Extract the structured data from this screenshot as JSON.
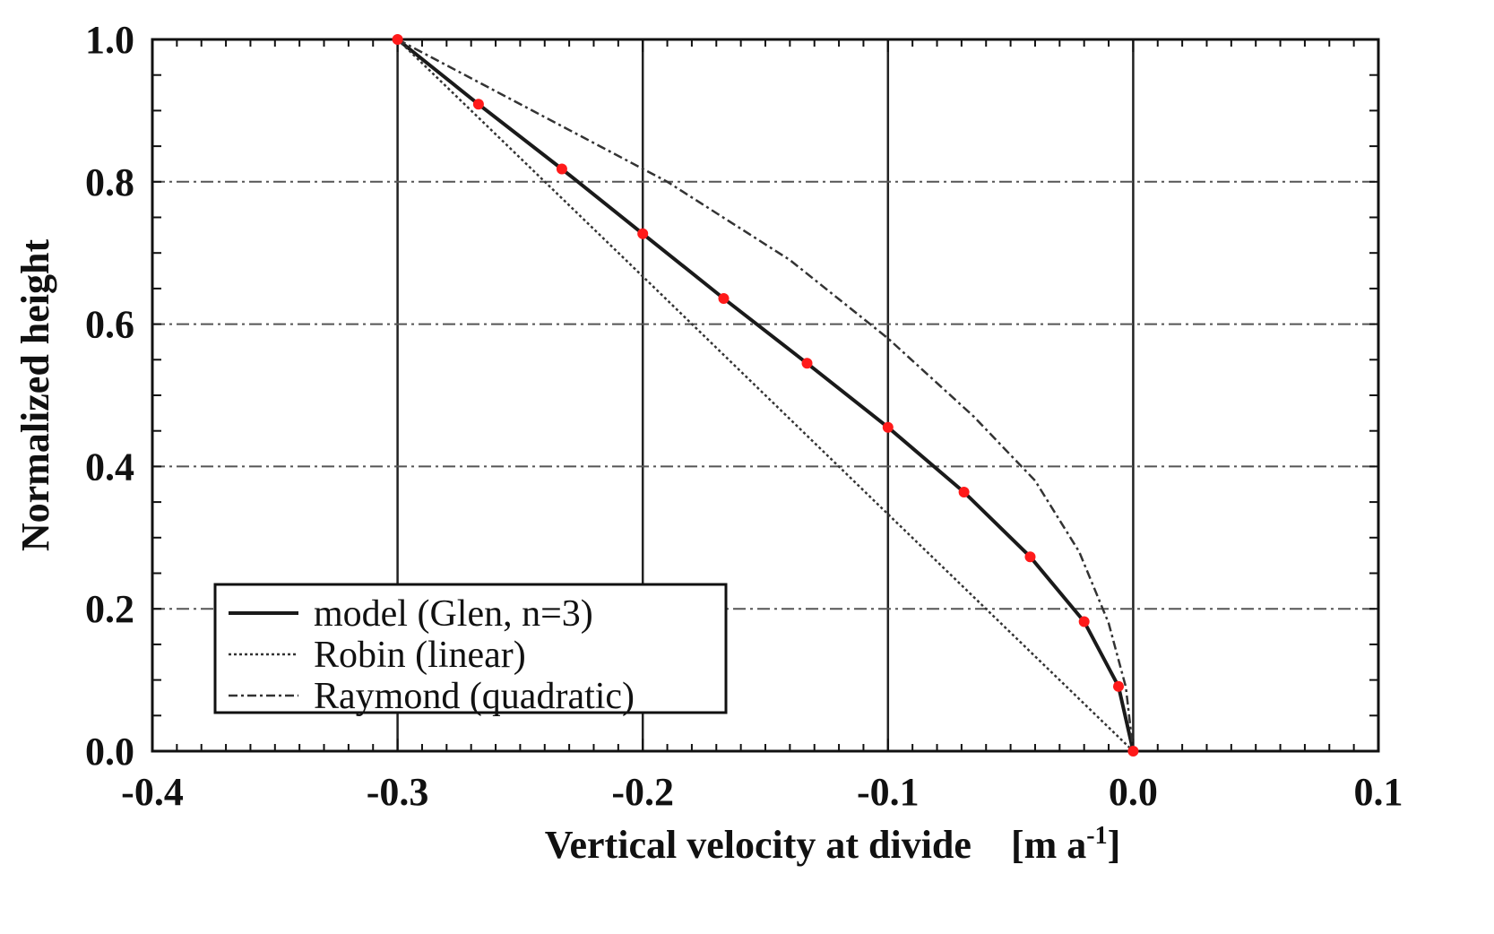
{
  "chart_data": {
    "type": "line",
    "title": "",
    "xlabel": "Vertical velocity at divide",
    "xunit": "[m a",
    "xunit_sup": "-1",
    "xunit_close": "]",
    "ylabel": "Normalized height",
    "xlim": [
      -0.4,
      0.1
    ],
    "ylim": [
      0.0,
      1.0
    ],
    "xticks": [
      "-0.4",
      "-0.3",
      "-0.2",
      "-0.1",
      "0.0",
      "0.1"
    ],
    "yticks": [
      "0.0",
      "0.2",
      "0.4",
      "0.6",
      "0.8",
      "1.0"
    ],
    "grid": true,
    "legend_position": "bottom-left",
    "series": [
      {
        "name": "model (Glen, n=3)",
        "style": "solid",
        "color": "#1a1a1a",
        "points": [
          [
            -0.3,
            1.0
          ],
          [
            -0.267,
            0.909
          ],
          [
            -0.233,
            0.818
          ],
          [
            -0.2,
            0.727
          ],
          [
            -0.167,
            0.636
          ],
          [
            -0.133,
            0.545
          ],
          [
            -0.1,
            0.455
          ],
          [
            -0.069,
            0.364
          ],
          [
            -0.042,
            0.273
          ],
          [
            -0.02,
            0.182
          ],
          [
            -0.006,
            0.091
          ],
          [
            0.0,
            0.0
          ]
        ]
      },
      {
        "name": "Robin (linear)",
        "style": "dotted",
        "color": "#333333",
        "points": [
          [
            -0.3,
            1.0
          ],
          [
            -0.2,
            0.667
          ],
          [
            -0.1,
            0.333
          ],
          [
            0.0,
            0.0
          ]
        ]
      },
      {
        "name": "Raymond (quadratic)",
        "style": "dashdot",
        "color": "#333333",
        "points": [
          [
            -0.3,
            1.0
          ],
          [
            -0.245,
            0.9
          ],
          [
            -0.19,
            0.8
          ],
          [
            -0.14,
            0.69
          ],
          [
            -0.1,
            0.58
          ],
          [
            -0.065,
            0.47
          ],
          [
            -0.04,
            0.38
          ],
          [
            -0.022,
            0.28
          ],
          [
            -0.01,
            0.18
          ],
          [
            -0.003,
            0.09
          ],
          [
            0.0,
            0.0
          ]
        ]
      }
    ],
    "markers": {
      "color": "#ff1a1a",
      "points": [
        [
          -0.3,
          1.0
        ],
        [
          -0.267,
          0.909
        ],
        [
          -0.233,
          0.818
        ],
        [
          -0.2,
          0.727
        ],
        [
          -0.167,
          0.636
        ],
        [
          -0.133,
          0.545
        ],
        [
          -0.1,
          0.455
        ],
        [
          -0.069,
          0.364
        ],
        [
          -0.042,
          0.273
        ],
        [
          -0.02,
          0.182
        ],
        [
          -0.006,
          0.091
        ],
        [
          0.0,
          0.0
        ]
      ]
    }
  }
}
